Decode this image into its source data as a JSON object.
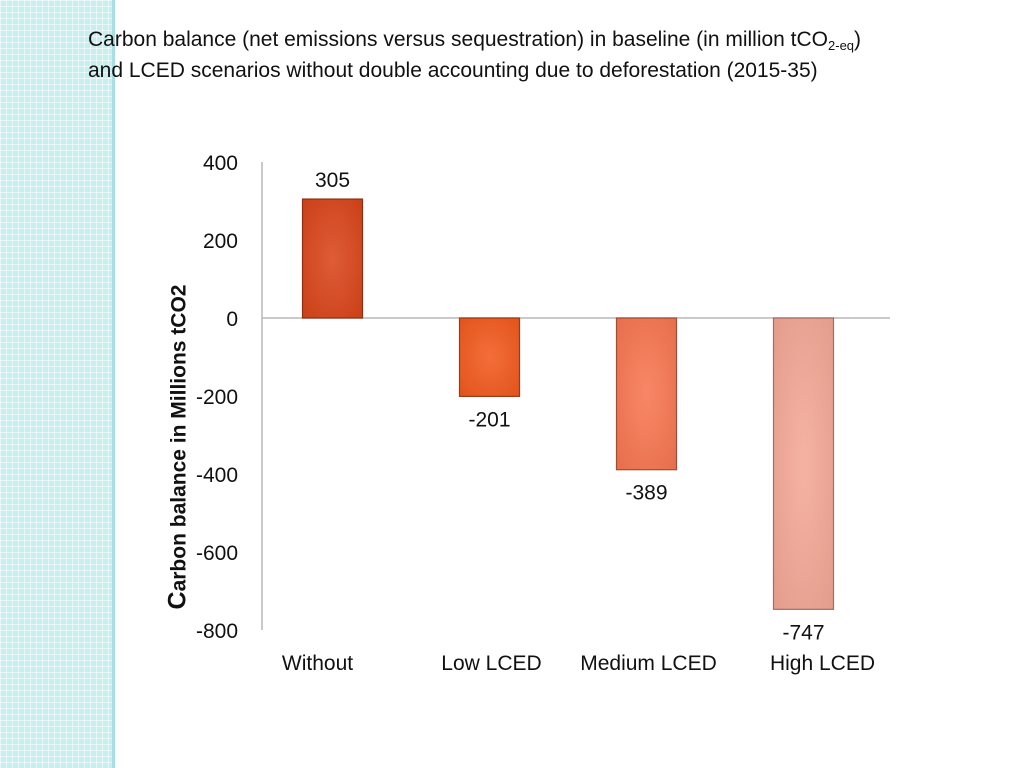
{
  "title": {
    "line1_pre": "Carbon balance (net emissions versus sequestration) in baseline (in million tCO",
    "line1_sub": "2-eq",
    "line1_post": ")",
    "line2": "and LCED scenarios without double accounting due to deforestation (2015-35)"
  },
  "ylabel": {
    "first": "C",
    "rest": "arbon balance in Millions tCO2"
  },
  "chart_data": {
    "type": "bar",
    "title": "Carbon balance (net emissions versus sequestration) in baseline (in million tCO2-eq) and LCED scenarios without double accounting due to deforestation (2015-35)",
    "categories": [
      "Without",
      "Low LCED",
      "Medium LCED",
      "High LCED"
    ],
    "values": [
      305,
      -201,
      -389,
      -747
    ],
    "data_labels": [
      "305",
      "-201",
      "-389",
      "-747"
    ],
    "ylabel": "Carbon balance in Millions tCO2",
    "xlabel": "",
    "ylim": [
      -800,
      400
    ],
    "yticks": [
      400,
      200,
      0,
      -200,
      -400,
      -600,
      -800
    ],
    "ytick_labels": [
      "400",
      "200",
      "0",
      "-200",
      "-400",
      "-600",
      "-800"
    ],
    "grid": false,
    "legend": "none",
    "colors": [
      "#d9461c",
      "#f25a1f",
      "#f77752",
      "#f4a897"
    ]
  }
}
